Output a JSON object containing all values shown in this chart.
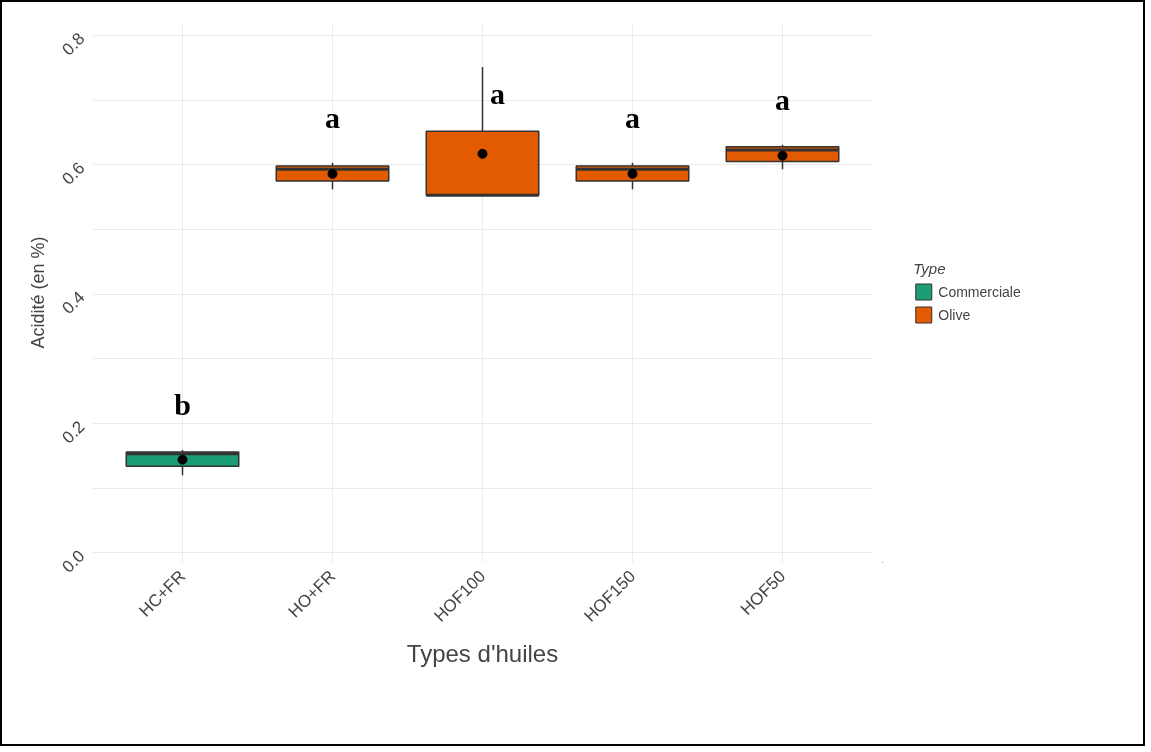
{
  "chart_data": {
    "type": "box",
    "xlabel": "Types d'huiles",
    "ylabel": "Acidité (en %)",
    "legend_title": "Type",
    "categories": [
      "HC+FR",
      "HO+FR",
      "HOF100",
      "HOF150",
      "HOF50"
    ],
    "ylim": [
      -0.015,
      0.82
    ],
    "yticks": [
      {
        "value": 0,
        "label": "0.0"
      },
      {
        "value": 0.1,
        "label": null
      },
      0.2,
      {
        "value": 0.3,
        "label": null
      },
      0.4,
      {
        "value": 0.5,
        "label": null
      },
      0.6,
      {
        "value": 0.7,
        "label": null
      },
      0.8
    ],
    "grid": true,
    "legend": "right",
    "series": [
      {
        "name": "Commerciale",
        "color": "#1b9e77",
        "boxes": [
          {
            "low": 0.12,
            "q1": 0.134,
            "median": 0.153,
            "q3": 0.156,
            "high": 0.159,
            "mean": 0.144
          },
          null,
          null,
          null,
          null
        ]
      },
      {
        "name": "Olive",
        "color": "#e35b00",
        "boxes": [
          null,
          {
            "low": 0.562,
            "q1": 0.575,
            "median": 0.593,
            "q3": 0.598,
            "high": 0.603,
            "mean": 0.586
          },
          {
            "low": 0.553,
            "q1": 0.553,
            "median": 0.553,
            "q3": 0.652,
            "high": 0.751,
            "mean": 0.617
          },
          {
            "low": 0.562,
            "q1": 0.575,
            "median": 0.593,
            "q3": 0.598,
            "high": 0.603,
            "mean": 0.586
          },
          {
            "low": 0.593,
            "q1": 0.605,
            "median": 0.623,
            "q3": 0.628,
            "high": 0.631,
            "mean": 0.614
          }
        ]
      }
    ],
    "annotations": [
      "b",
      "a",
      "a",
      "a",
      "a"
    ]
  }
}
